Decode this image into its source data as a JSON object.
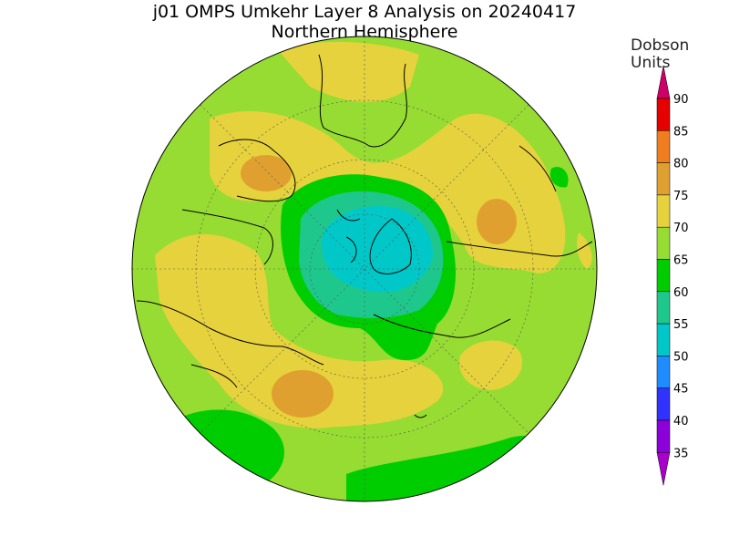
{
  "title": "j01 OMPS Umkehr Layer 8 Analysis on 20240417",
  "subtitle": "Northern Hemisphere",
  "colorbar": {
    "units_line1": "Dobson",
    "units_line2": "Units",
    "levels": [
      {
        "label": "90",
        "color": "#cc0066"
      },
      {
        "label": "85",
        "color": "#e60000"
      },
      {
        "label": "80",
        "color": "#f07d1e"
      },
      {
        "label": "75",
        "color": "#e0a030"
      },
      {
        "label": "70",
        "color": "#e6d23c"
      },
      {
        "label": "65",
        "color": "#96dc32"
      },
      {
        "label": "60",
        "color": "#00cd00"
      },
      {
        "label": "55",
        "color": "#1ec88c"
      },
      {
        "label": "50",
        "color": "#00c8c8"
      },
      {
        "label": "45",
        "color": "#1e8cff"
      },
      {
        "label": "40",
        "color": "#3232ff"
      },
      {
        "label": "35",
        "color": "#8c00dc"
      }
    ],
    "min_color": "#aa00cc"
  }
}
